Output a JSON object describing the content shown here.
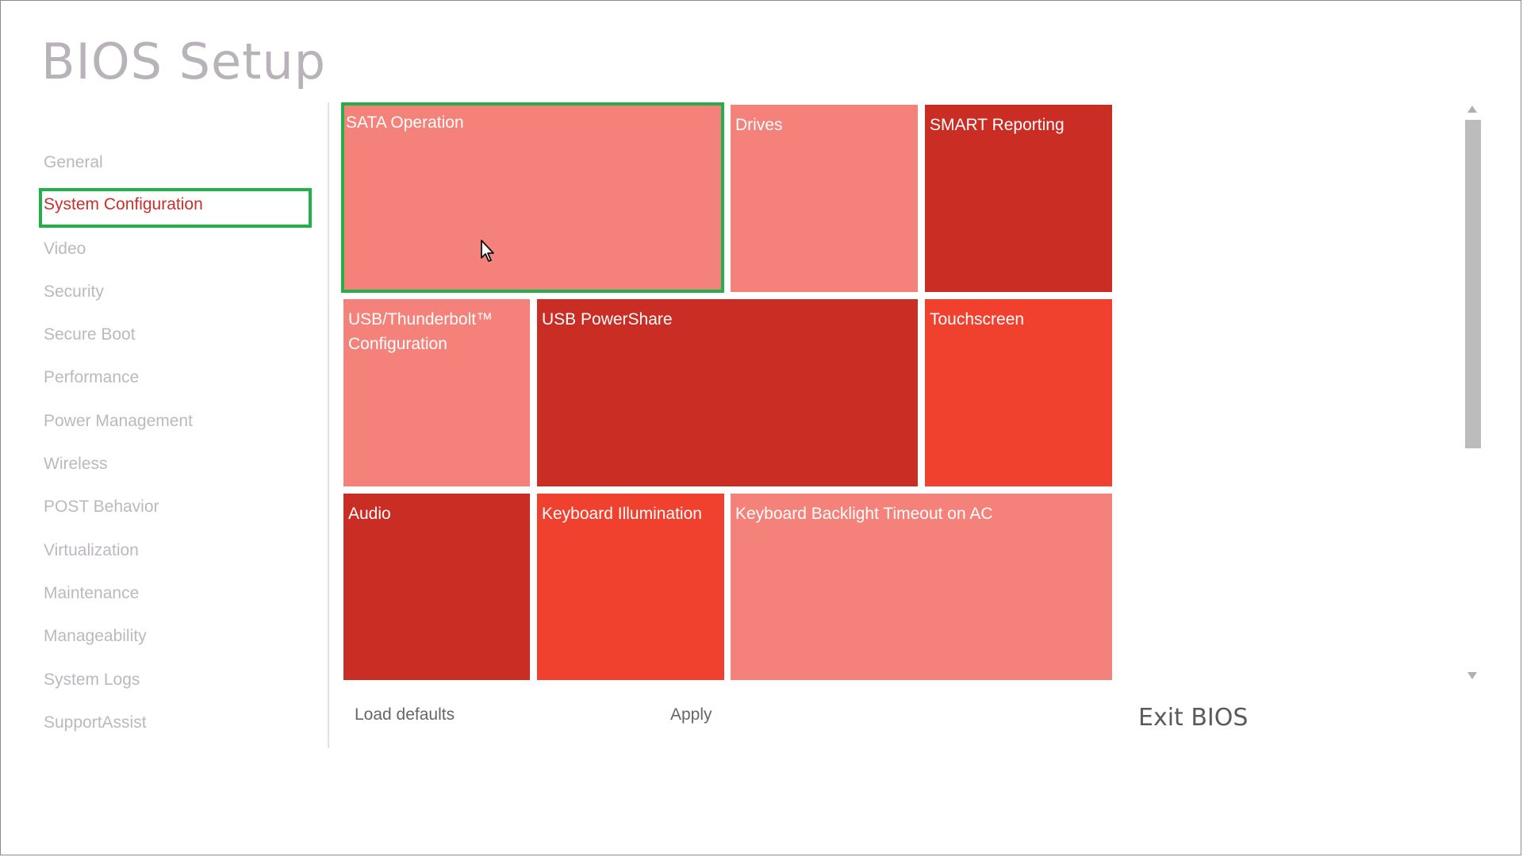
{
  "app": {
    "title": "BIOS Setup"
  },
  "sidebar": {
    "active_index": 1,
    "items": [
      {
        "label": "General"
      },
      {
        "label": "System Configuration"
      },
      {
        "label": "Video"
      },
      {
        "label": "Security"
      },
      {
        "label": "Secure Boot"
      },
      {
        "label": "Performance"
      },
      {
        "label": "Power Management"
      },
      {
        "label": "Wireless"
      },
      {
        "label": "POST Behavior"
      },
      {
        "label": "Virtualization"
      },
      {
        "label": "Maintenance"
      },
      {
        "label": "Manageability"
      },
      {
        "label": "System Logs"
      },
      {
        "label": "SupportAssist"
      }
    ]
  },
  "tiles": {
    "sata_operation": "SATA Operation",
    "drives": "Drives",
    "smart_reporting": "SMART Reporting",
    "usb_thunderbolt": "USB/Thunderbolt™ Configuration",
    "usb_powershare": "USB PowerShare",
    "touchscreen": "Touchscreen",
    "audio": "Audio",
    "keyboard_illumination": "Keyboard Illumination",
    "keyboard_backlight_timeout": "Keyboard Backlight Timeout on AC"
  },
  "footer": {
    "load_defaults": "Load defaults",
    "apply": "Apply",
    "exit": "Exit BIOS"
  },
  "colors": {
    "tile_light": "#f5827a",
    "tile_dark": "#c92d24",
    "tile_mid": "#f0402e",
    "selection": "#22b04b",
    "active_text": "#c9302c"
  },
  "icons": {
    "cursor": "mouse-pointer-icon",
    "scroll_up": "scroll-up-arrow-icon",
    "scroll_down": "scroll-down-arrow-icon"
  }
}
